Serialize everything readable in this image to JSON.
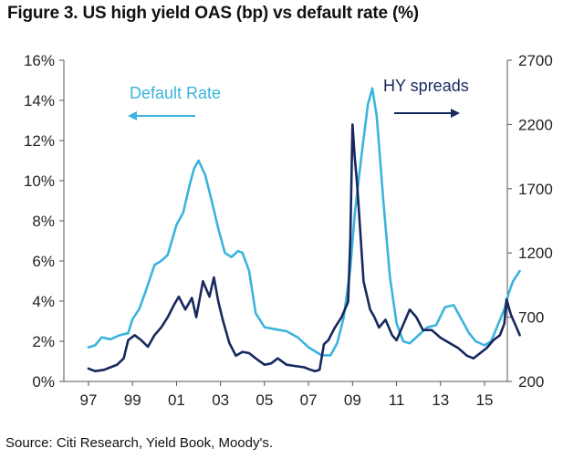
{
  "chart_data": {
    "type": "line",
    "title": "Figure 3. US high yield OAS (bp) vs default rate (%)",
    "source": "Source: Citi Research, Yield Book, Moody's.",
    "x_tick_labels": [
      "97",
      "99",
      "01",
      "03",
      "05",
      "07",
      "09",
      "11",
      "13",
      "15"
    ],
    "x_range": [
      1997,
      2016.6
    ],
    "left_axis": {
      "ylim": [
        0,
        16
      ],
      "tick_labels": [
        "0%",
        "2%",
        "4%",
        "6%",
        "8%",
        "10%",
        "12%",
        "14%",
        "16%"
      ],
      "tick_values": [
        0,
        2,
        4,
        6,
        8,
        10,
        12,
        14,
        16
      ]
    },
    "right_axis": {
      "ylim": [
        200,
        2700
      ],
      "tick_labels": [
        "200",
        "700",
        "1200",
        "1700",
        "2200",
        "2700"
      ],
      "tick_values": [
        200,
        700,
        1200,
        1700,
        2200,
        2700
      ]
    },
    "annotations": {
      "default_label": "Default Rate",
      "hy_label": "HY spreads"
    },
    "series": [
      {
        "name": "Default Rate",
        "axis": "left",
        "color": "#3bb4dd",
        "x": [
          1997.0,
          1997.3,
          1997.6,
          1998.0,
          1998.4,
          1998.8,
          1999.0,
          1999.3,
          1999.6,
          2000.0,
          2000.3,
          2000.6,
          2001.0,
          2001.3,
          2001.6,
          2001.8,
          2002.0,
          2002.3,
          2002.6,
          2002.9,
          2003.2,
          2003.5,
          2003.8,
          2004.0,
          2004.3,
          2004.6,
          2005.0,
          2005.5,
          2006.0,
          2006.5,
          2007.0,
          2007.3,
          2007.6,
          2008.0,
          2008.3,
          2008.6,
          2008.9,
          2009.1,
          2009.4,
          2009.7,
          2009.9,
          2010.1,
          2010.4,
          2010.7,
          2011.0,
          2011.3,
          2011.6,
          2012.0,
          2012.4,
          2012.8,
          2013.2,
          2013.6,
          2014.0,
          2014.3,
          2014.6,
          2015.0,
          2015.3,
          2015.6,
          2015.9,
          2016.1,
          2016.3,
          2016.6
        ],
        "values": [
          1.7,
          1.8,
          2.2,
          2.1,
          2.3,
          2.4,
          3.1,
          3.6,
          4.5,
          5.8,
          6.0,
          6.3,
          7.8,
          8.4,
          9.8,
          10.6,
          11.0,
          10.3,
          9.0,
          7.6,
          6.4,
          6.2,
          6.5,
          6.4,
          5.5,
          3.4,
          2.7,
          2.6,
          2.5,
          2.2,
          1.7,
          1.5,
          1.3,
          1.3,
          1.9,
          3.2,
          5.6,
          8.3,
          11.2,
          13.8,
          14.6,
          13.2,
          9.0,
          5.2,
          2.9,
          2.0,
          1.9,
          2.3,
          2.7,
          2.8,
          3.7,
          3.8,
          3.0,
          2.4,
          2.0,
          1.8,
          2.0,
          2.8,
          3.6,
          4.4,
          5.0,
          5.5
        ]
      },
      {
        "name": "HY spreads",
        "axis": "right",
        "color": "#16285e",
        "x": [
          1997.0,
          1997.3,
          1997.7,
          1998.0,
          1998.3,
          1998.6,
          1998.8,
          1999.1,
          1999.4,
          1999.7,
          2000.0,
          2000.3,
          2000.6,
          2000.9,
          2001.1,
          2001.4,
          2001.7,
          2001.9,
          2002.2,
          2002.5,
          2002.7,
          2002.9,
          2003.1,
          2003.4,
          2003.7,
          2004.0,
          2004.3,
          2004.6,
          2005.0,
          2005.3,
          2005.6,
          2006.0,
          2006.4,
          2006.8,
          2007.1,
          2007.3,
          2007.5,
          2007.7,
          2007.9,
          2008.2,
          2008.5,
          2008.8,
          2008.9,
          2009.0,
          2009.1,
          2009.2,
          2009.3,
          2009.5,
          2009.8,
          2010.0,
          2010.2,
          2010.5,
          2010.8,
          2011.0,
          2011.3,
          2011.6,
          2011.9,
          2012.2,
          2012.6,
          2013.0,
          2013.4,
          2013.8,
          2014.2,
          2014.5,
          2014.8,
          2015.1,
          2015.4,
          2015.7,
          2015.9,
          2016.0,
          2016.2,
          2016.4,
          2016.6
        ],
        "values": [
          300,
          280,
          290,
          310,
          330,
          380,
          520,
          560,
          520,
          470,
          560,
          620,
          700,
          800,
          860,
          760,
          850,
          700,
          980,
          860,
          1010,
          820,
          680,
          500,
          400,
          430,
          420,
          380,
          330,
          340,
          380,
          330,
          320,
          310,
          290,
          280,
          290,
          490,
          520,
          620,
          700,
          820,
          1300,
          2200,
          1950,
          1750,
          1500,
          980,
          760,
          700,
          620,
          680,
          560,
          520,
          640,
          760,
          700,
          600,
          600,
          540,
          500,
          460,
          400,
          380,
          420,
          460,
          520,
          560,
          650,
          840,
          720,
          640,
          560
        ]
      }
    ]
  }
}
